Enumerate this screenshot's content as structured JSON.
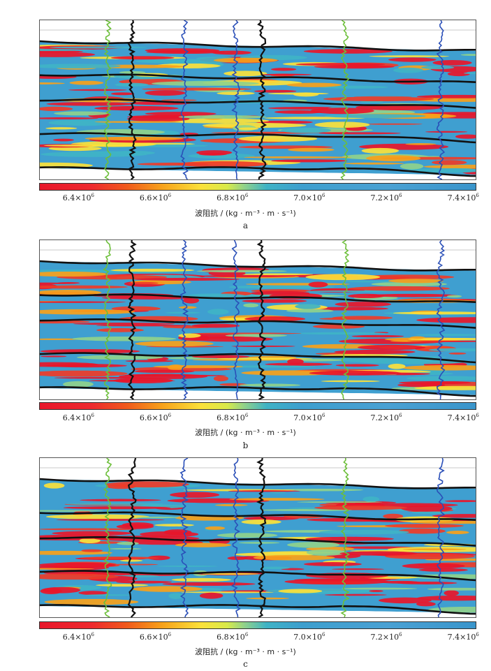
{
  "colorbar": {
    "label": "波阻抗 / (kg · m⁻³ · m · s⁻¹)",
    "ticks": [
      {
        "mant": "6.4×10",
        "exp": "6",
        "value": 6400000
      },
      {
        "mant": "6.6×10",
        "exp": "6",
        "value": 6600000
      },
      {
        "mant": "6.8×10",
        "exp": "6",
        "value": 6800000
      },
      {
        "mant": "7.0×10",
        "exp": "6",
        "value": 7000000
      },
      {
        "mant": "7.2×10",
        "exp": "6",
        "value": 7200000
      },
      {
        "mant": "7.4×10",
        "exp": "6",
        "value": 7400000
      }
    ],
    "range": [
      6300000,
      7450000
    ],
    "colors": [
      "#e8162a",
      "#f7a11a",
      "#fbe13a",
      "#8fd18b",
      "#3fb3c5",
      "#3a95cb"
    ]
  },
  "panels": [
    {
      "letter": "a"
    },
    {
      "letter": "b"
    },
    {
      "letter": "c"
    }
  ],
  "chart_data": {
    "type": "heatmap",
    "panels": [
      "a",
      "b",
      "c"
    ],
    "colorbar_label": "波阻抗 / (kg · m⁻³ · m · s⁻¹)",
    "colorbar_range": [
      6300000,
      7450000
    ],
    "colorbar_ticks": [
      6400000,
      6600000,
      6800000,
      7000000,
      7200000,
      7400000
    ],
    "well_log_colors": [
      "#6dbf3a",
      "#111111",
      "#2a4fb8",
      "#2a4fb8",
      "#111111",
      "#6dbf3a",
      "#2a4fb8"
    ]
  }
}
